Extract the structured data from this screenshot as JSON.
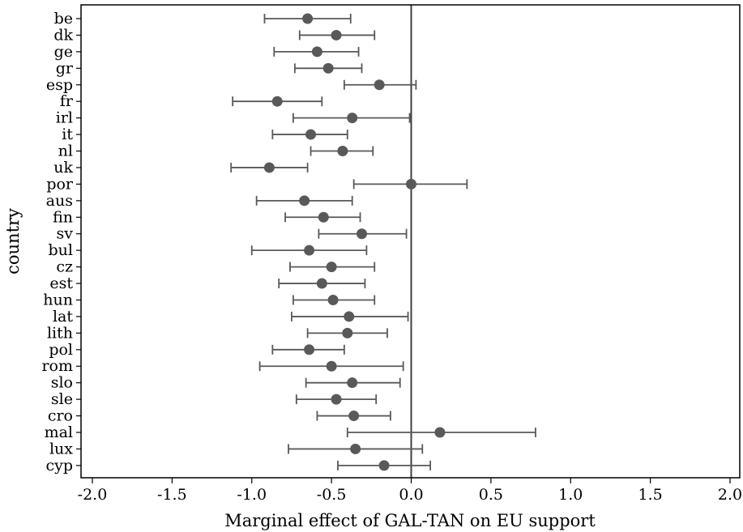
{
  "chart_data": {
    "type": "scatter",
    "subtype": "coefficient-plot-with-95ci",
    "xlabel": "Marginal effect of GAL-TAN on EU support",
    "ylabel": "country",
    "xlim": [
      -2.0,
      2.0
    ],
    "x_ticks": [
      -2.0,
      -1.5,
      -1.0,
      -0.5,
      0.0,
      0.5,
      1.0,
      1.5,
      2.0
    ],
    "x_tick_labels": [
      "-2.0",
      "-1.5",
      "-1.0",
      "-0.5",
      "0.0",
      "0.5",
      "1.0",
      "1.5",
      "2.0"
    ],
    "reference_line_x": 0,
    "grid": false,
    "marker_color": "#595959",
    "line_color": "#595959",
    "categories": [
      "be",
      "dk",
      "ge",
      "gr",
      "esp",
      "fr",
      "irl",
      "it",
      "nl",
      "uk",
      "por",
      "aus",
      "fin",
      "sv",
      "bul",
      "cz",
      "est",
      "hun",
      "lat",
      "lith",
      "pol",
      "rom",
      "slo",
      "sle",
      "cro",
      "mal",
      "lux",
      "cyp"
    ],
    "estimates": [
      -0.65,
      -0.47,
      -0.59,
      -0.52,
      -0.2,
      -0.84,
      -0.37,
      -0.63,
      -0.43,
      -0.89,
      0.0,
      -0.67,
      -0.55,
      -0.31,
      -0.64,
      -0.5,
      -0.56,
      -0.49,
      -0.39,
      -0.4,
      -0.64,
      -0.5,
      -0.37,
      -0.47,
      -0.36,
      0.18,
      -0.35,
      -0.17
    ],
    "ci_low": [
      -0.92,
      -0.7,
      -0.86,
      -0.73,
      -0.42,
      -1.12,
      -0.74,
      -0.87,
      -0.63,
      -1.13,
      -0.36,
      -0.97,
      -0.79,
      -0.58,
      -1.0,
      -0.76,
      -0.83,
      -0.74,
      -0.75,
      -0.65,
      -0.87,
      -0.95,
      -0.66,
      -0.72,
      -0.59,
      -0.4,
      -0.77,
      -0.46
    ],
    "ci_high": [
      -0.38,
      -0.23,
      -0.33,
      -0.31,
      0.03,
      -0.56,
      -0.01,
      -0.4,
      -0.24,
      -0.65,
      0.35,
      -0.37,
      -0.32,
      -0.03,
      -0.28,
      -0.23,
      -0.29,
      -0.23,
      -0.02,
      -0.15,
      -0.42,
      -0.05,
      -0.07,
      -0.22,
      -0.13,
      0.78,
      0.07,
      0.12
    ]
  }
}
